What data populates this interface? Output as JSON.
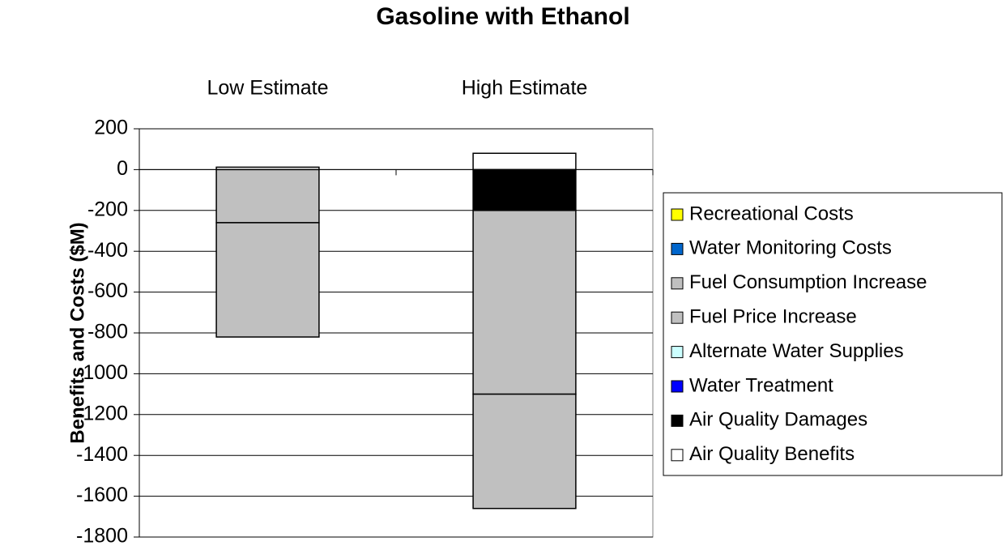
{
  "chart_data": {
    "type": "stacked_bar",
    "title": "Gasoline with Ethanol",
    "y_label": "Benefits and Costs ($M)",
    "categories": [
      "Low Estimate",
      "High Estimate"
    ],
    "series": [
      {
        "name": "Air Quality Benefits",
        "color": "#ffffff",
        "values": [
          12,
          80
        ]
      },
      {
        "name": "Air Quality Damages",
        "color": "#000000",
        "values": [
          0,
          -200
        ]
      },
      {
        "name": "Water Treatment",
        "color": "#0000ff",
        "values": [
          0,
          0
        ]
      },
      {
        "name": "Alternate Water Supplies",
        "color": "#ccffff",
        "values": [
          0,
          0
        ]
      },
      {
        "name": "Fuel Price Increase",
        "color": "#c0c0c0",
        "values": [
          -260,
          -900
        ]
      },
      {
        "name": "Fuel Consumption Increase",
        "color": "#c0c0c0",
        "values": [
          -560,
          -560
        ]
      },
      {
        "name": "Water Monitoring Costs",
        "color": "#0066cc",
        "values": [
          0,
          0
        ]
      },
      {
        "name": "Recreational Costs",
        "color": "#ffff00",
        "values": [
          0,
          0
        ]
      }
    ],
    "ylim": [
      -1800,
      200
    ],
    "yticks": [
      -1800,
      -1600,
      -1400,
      -1200,
      -1000,
      -800,
      -600,
      -400,
      -200,
      0,
      200
    ],
    "grid": true,
    "legend": "right"
  }
}
